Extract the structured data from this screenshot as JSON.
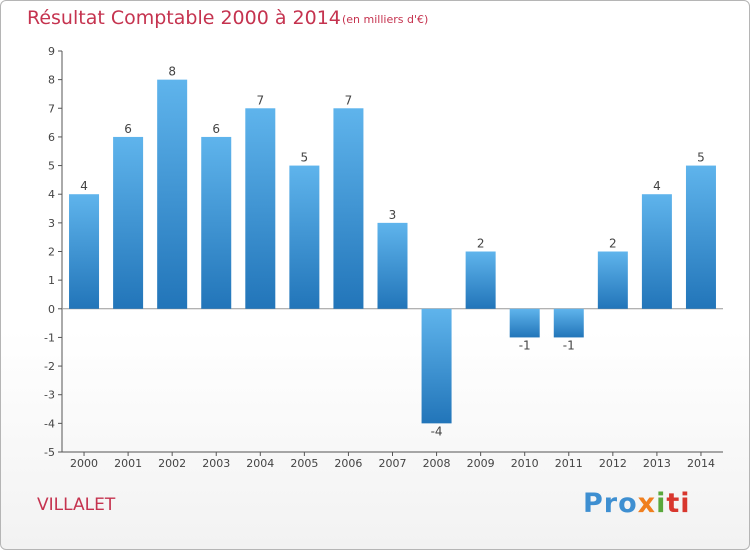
{
  "title": "Résultat Comptable 2000 à 2014",
  "subtitle": "(en milliers d'€)",
  "commune": "VILLALET",
  "logo": [
    "Pro",
    "x",
    "i",
    "ti"
  ],
  "colors": {
    "accent": "#c5334f",
    "bar_top": "#5fb4ec",
    "bar_bottom": "#2275b9"
  },
  "chart_data": {
    "type": "bar",
    "title": "Résultat Comptable 2000 à 2014",
    "xlabel": "",
    "ylabel": "",
    "categories": [
      "2000",
      "2001",
      "2002",
      "2003",
      "2004",
      "2005",
      "2006",
      "2007",
      "2008",
      "2009",
      "2010",
      "2011",
      "2012",
      "2013",
      "2014"
    ],
    "values": [
      4,
      6,
      8,
      6,
      7,
      5,
      7,
      3,
      -4,
      2,
      -1,
      -1,
      2,
      4,
      5
    ],
    "ylim": [
      -5,
      9
    ],
    "yticks": [
      -5,
      -4,
      -3,
      -2,
      -1,
      0,
      1,
      2,
      3,
      4,
      5,
      6,
      7,
      8,
      9
    ],
    "grid": false
  }
}
